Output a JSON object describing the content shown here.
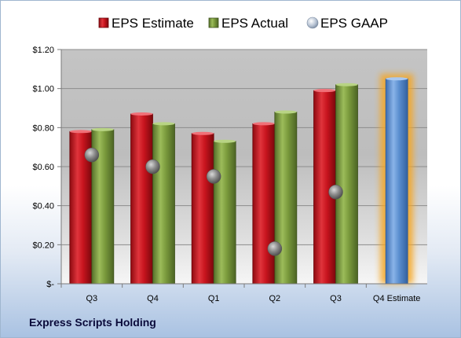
{
  "company": "Express Scripts Holding",
  "colors": {
    "estimate": "#c8141e",
    "actual": "#7a9a3c",
    "gaap": "#8a8a8a",
    "forecast": "#5b8fd0",
    "forecast_glow": "#f5a623"
  },
  "chart_data": {
    "type": "bar",
    "categories": [
      "Q3",
      "Q4",
      "Q1",
      "Q2",
      "Q3",
      "Q4 Estimate"
    ],
    "series": [
      {
        "name": "EPS Estimate",
        "values": [
          0.78,
          0.87,
          0.77,
          0.82,
          0.99,
          null
        ]
      },
      {
        "name": "EPS Actual",
        "values": [
          0.79,
          0.82,
          0.73,
          0.88,
          1.02,
          1.05
        ]
      },
      {
        "name": "EPS GAAP",
        "values": [
          0.66,
          0.6,
          0.55,
          0.18,
          0.47,
          null
        ]
      }
    ],
    "ylim": [
      0,
      1.2
    ],
    "yticks": [
      {
        "value": 0,
        "label": "$-"
      },
      {
        "value": 0.2,
        "label": "$0.20"
      },
      {
        "value": 0.4,
        "label": "$0.40"
      },
      {
        "value": 0.6,
        "label": "$0.60"
      },
      {
        "value": 0.8,
        "label": "$0.80"
      },
      {
        "value": 1.0,
        "label": "$1.00"
      },
      {
        "value": 1.2,
        "label": "$1.20"
      }
    ],
    "legend_position": "top",
    "grid": true
  }
}
